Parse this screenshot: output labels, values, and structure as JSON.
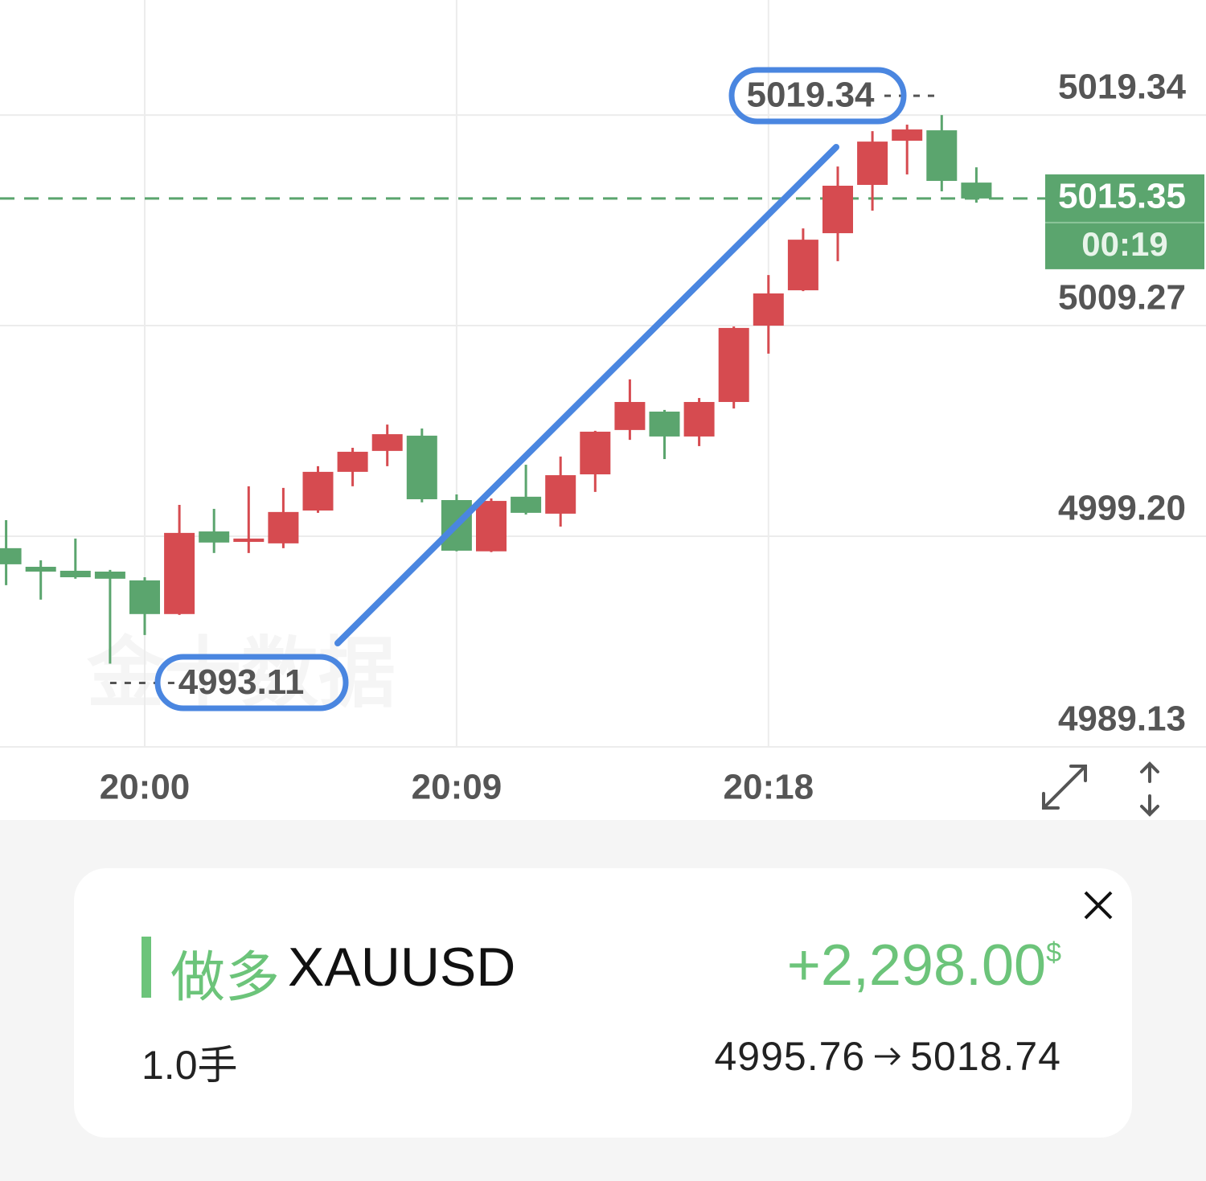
{
  "chart_data": {
    "type": "candlestick",
    "categories": [
      null,
      null,
      null,
      null,
      "20:00",
      null,
      null,
      null,
      null,
      null,
      null,
      null,
      null,
      "20:09",
      null,
      null,
      null,
      null,
      null,
      null,
      null,
      null,
      "20:18",
      null,
      null,
      null,
      null,
      null,
      null
    ],
    "open": [
      4998.63,
      4997.74,
      4997.55,
      4997.51,
      4997.09,
      4995.48,
      4999.43,
      4998.93,
      4998.86,
      5000.43,
      5002.28,
      5003.28,
      5004.01,
      5000.93,
      4998.48,
      5001.09,
      5000.28,
      5002.16,
      5004.28,
      5005.16,
      5003.97,
      5005.62,
      5009.27,
      5010.96,
      5013.69,
      5016.0,
      5018.11,
      5018.61,
      5016.11
    ],
    "high": [
      4999.97,
      4998.05,
      4999.09,
      4997.59,
      4997.24,
      5000.7,
      5000.51,
      5001.59,
      5001.51,
      5002.55,
      5003.43,
      5004.54,
      5004.35,
      5001.2,
      5001.01,
      5002.62,
      5003.01,
      5004.24,
      5006.7,
      5005.24,
      5005.81,
      5009.23,
      5011.69,
      5013.92,
      5016.88,
      5018.57,
      5018.88,
      5019.34,
      5016.84
    ],
    "low": [
      4996.86,
      4996.17,
      4997.17,
      4993.11,
      4994.48,
      4995.44,
      4998.4,
      4998.4,
      4998.63,
      5000.32,
      5001.59,
      5002.55,
      5000.82,
      4998.48,
      4998.44,
      5000.24,
      4999.66,
      5001.32,
      5003.81,
      5002.89,
      5003.51,
      5005.31,
      5007.93,
      5010.92,
      5012.35,
      5014.77,
      5016.5,
      5015.69,
      5015.15
    ],
    "close": [
      4997.86,
      4997.51,
      4997.24,
      4997.17,
      4995.48,
      4999.36,
      4998.9,
      4999.09,
      5000.36,
      5002.28,
      5003.24,
      5004.08,
      5000.97,
      4998.51,
      5000.89,
      5000.32,
      5002.12,
      5004.2,
      5005.62,
      5003.97,
      5005.62,
      5009.16,
      5010.81,
      5013.38,
      5015.96,
      5018.07,
      5018.65,
      5016.19,
      5015.35
    ],
    "up_color": "#d64b50",
    "down_color": "#5ba56e",
    "ylim": [
      4989.13,
      5024.84
    ],
    "yticks": [
      5019.34,
      5009.27,
      {
        "value": 4999.2,
        "label": "4999.20"
      },
      4989.13
    ],
    "grid": true,
    "last_price": 5015.35,
    "countdown": "00:19",
    "high_label": 5019.34,
    "low_label": 4993.11,
    "watermark": "金十数据"
  },
  "position": {
    "side": "做多",
    "symbol": "XAUUSD",
    "pnl": "+2,298.00",
    "currency": "$",
    "lots": "1.0手",
    "entry": "4995.76",
    "exit": "5018.74"
  }
}
